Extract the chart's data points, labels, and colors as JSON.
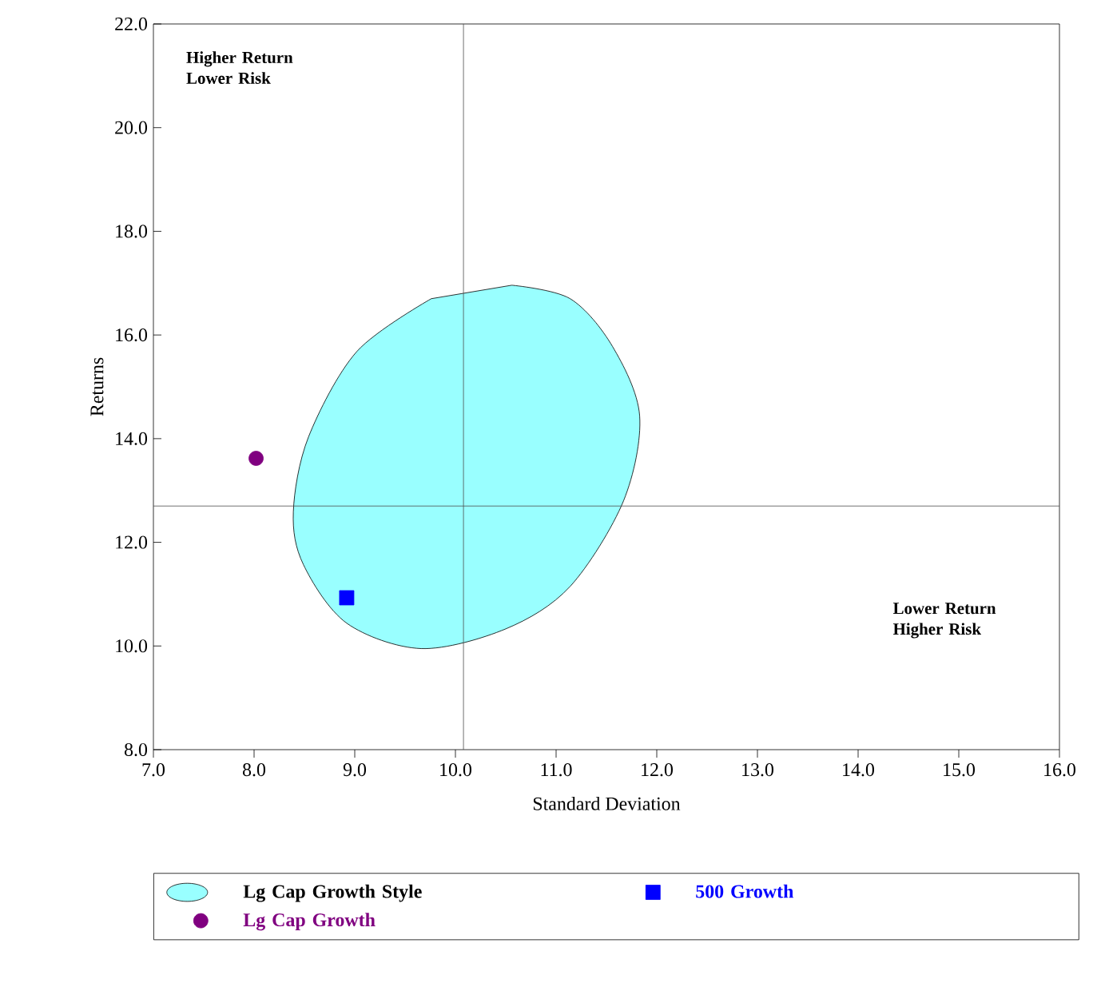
{
  "chart_data": {
    "type": "scatter",
    "xlabel": "Standard Deviation",
    "ylabel": "Returns",
    "xlim": [
      7.0,
      16.0
    ],
    "ylim": [
      8.0,
      22.0
    ],
    "xticks": [
      {
        "value": 7,
        "label": "7.0"
      },
      {
        "value": 8,
        "label": "8.0"
      },
      {
        "value": 9,
        "label": "9.0"
      },
      {
        "value": 10,
        "label": "10.0"
      },
      {
        "value": 11,
        "label": "11.0"
      },
      {
        "value": 12,
        "label": "12.0"
      },
      {
        "value": 13,
        "label": "13.0"
      },
      {
        "value": 14,
        "label": "14.0"
      },
      {
        "value": 15,
        "label": "15.0"
      },
      {
        "value": 16,
        "label": "16.0"
      }
    ],
    "yticks": [
      {
        "value": 8,
        "label": "8.0"
      },
      {
        "value": 10,
        "label": "10.0"
      },
      {
        "value": 12,
        "label": "12.0"
      },
      {
        "value": 14,
        "label": "14.0"
      },
      {
        "value": 16,
        "label": "16.0"
      },
      {
        "value": 18,
        "label": "18.0"
      },
      {
        "value": 20,
        "label": "20.0"
      },
      {
        "value": 22,
        "label": "22.0"
      }
    ],
    "series": [
      {
        "name": "Lg Cap Growth Style",
        "type": "area",
        "color": "#99ffff",
        "x": [
          10.56,
          11.14,
          11.56,
          11.83,
          11.67,
          11.14,
          10.5,
          9.66,
          8.92,
          8.49,
          8.39,
          8.54,
          9.02,
          9.76
        ],
        "values": [
          16.96,
          16.7,
          15.78,
          14.44,
          12.8,
          11.15,
          10.33,
          9.95,
          10.44,
          11.57,
          12.59,
          14.03,
          15.68,
          16.7
        ]
      },
      {
        "name": "500 Growth",
        "type": "scatter",
        "marker": "square",
        "color": "#0000ff",
        "x": [
          8.92
        ],
        "values": [
          10.93
        ]
      },
      {
        "name": "Lg Cap Growth",
        "type": "scatter",
        "marker": "circle",
        "color": "#800080",
        "x": [
          8.02
        ],
        "values": [
          13.62
        ]
      }
    ],
    "ref_lines": [
      {
        "axis": "x",
        "value": 10.08
      },
      {
        "axis": "y",
        "value": 12.7
      }
    ],
    "annotations": [
      "Higher Return Lower Risk",
      "Lower Return Higher Risk"
    ],
    "legend": "bottom"
  }
}
